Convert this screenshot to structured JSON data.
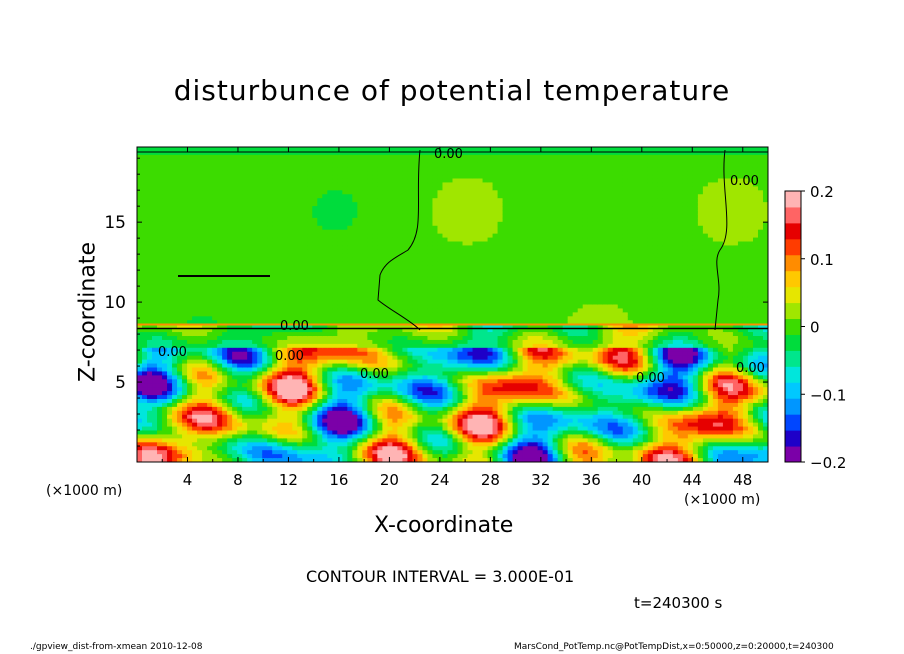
{
  "chart_data": {
    "type": "heatmap",
    "title": "disturbunce of potential temperature",
    "xlabel": "X-coordinate",
    "ylabel": "Z-coordinate",
    "x_unit": "(×1000 m)",
    "z_unit": "(×1000 m)",
    "xlim": [
      0,
      50
    ],
    "ylim": [
      0,
      19.7
    ],
    "x_ticks": [
      4,
      8,
      12,
      16,
      20,
      24,
      28,
      32,
      36,
      40,
      44,
      48
    ],
    "y_ticks": [
      5,
      10,
      15
    ],
    "colorbar": {
      "range": [
        -0.2,
        0.2
      ],
      "tick_labels": [
        "0.2",
        "0.1",
        "0",
        "−0.1",
        "−0.2"
      ],
      "tick_values": [
        0.2,
        0.1,
        0,
        -0.1,
        -0.2
      ],
      "colors": [
        "#7b00a8",
        "#1e00c8",
        "#0046ff",
        "#0096ff",
        "#00c8ff",
        "#00e6dc",
        "#00e68c",
        "#00dc3c",
        "#3cdc00",
        "#a0e600",
        "#e6e600",
        "#ffc800",
        "#ff8c00",
        "#ff3c00",
        "#e60000",
        "#ff6464",
        "#ffb4b4"
      ]
    },
    "contour_labels": [
      "0.00",
      "0.00",
      "0.00",
      "0.00",
      "0.00",
      "0.00",
      "0.00",
      "0.00"
    ],
    "regions": [
      {
        "z_from": 8.6,
        "z_to": 19.7,
        "approx_value": 0.0,
        "note": "upper layer near-uniform"
      },
      {
        "z_from": 0,
        "z_to": 8.6,
        "approx_value_range": [
          -0.2,
          0.2
        ]
      }
    ]
  },
  "annotations": {
    "contour_interval": "CONTOUR INTERVAL = 3.000E-01",
    "time": "t=240300 s",
    "footer_left": "./gpview_dist-from-xmean  2010-12-08",
    "footer_right": "MarsCond_PotTemp.nc@PotTempDist,x=0:50000,z=0:20000,t=240300"
  }
}
